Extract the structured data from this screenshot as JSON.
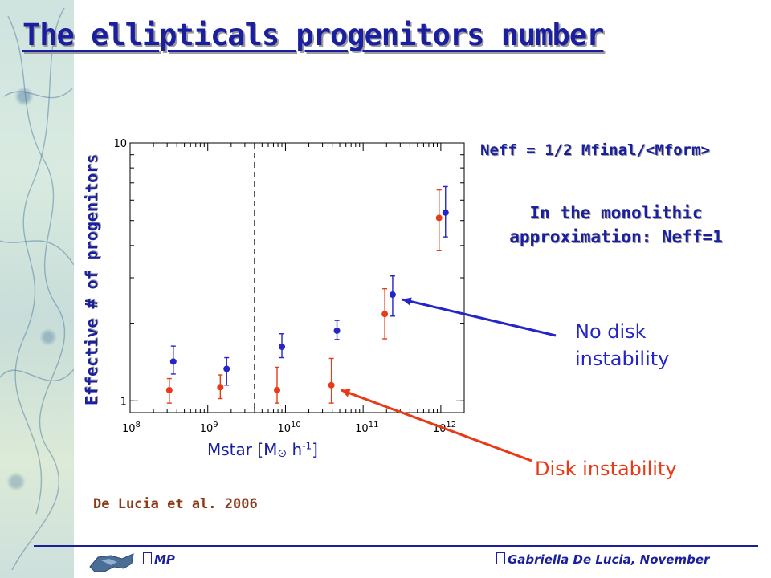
{
  "slide": {
    "title": "The ellipticals progenitors number",
    "formula": "Neff = 1/2 Mfinal/<Mform>",
    "note": "In the monolithic approximation: Neff=1",
    "label_no_disk": "No disk instability",
    "label_disk": "Disk instability",
    "citation": "De Lucia et al. 2006",
    "footer_left": "MP",
    "footer_right": "Gabriella De Lucia, November"
  },
  "colors": {
    "title": "#1a1fa0",
    "no_disk_series": "#2424c8",
    "disk_series": "#e83a16"
  },
  "chart_data": {
    "type": "scatter",
    "xlabel": "Mstar [M",
    "xlabel_sun": "⊙",
    "xlabel_tail": " h",
    "xlabel_sup": "-1",
    "xlabel_end": "]",
    "ylabel": "Effective # of progenitors",
    "x_scale": "log",
    "y_scale": "log",
    "xlim": [
      100000000,
      2000000000000
    ],
    "ylim": [
      0.9,
      10
    ],
    "x_ticks": [
      {
        "value": 100000000,
        "base": "10",
        "exp": "8"
      },
      {
        "value": 1000000000,
        "base": "10",
        "exp": "9"
      },
      {
        "value": 10000000000,
        "base": "10",
        "exp": "10"
      },
      {
        "value": 100000000000,
        "base": "10",
        "exp": "11"
      },
      {
        "value": 1000000000000,
        "base": "10",
        "exp": "12"
      }
    ],
    "y_ticks": [
      {
        "value": 1,
        "label": "1"
      },
      {
        "value": 10,
        "label": "10"
      }
    ],
    "vline_x": 4000000000,
    "series": [
      {
        "key": "disk",
        "color": "#e83a16",
        "points": [
          {
            "x": 320000000,
            "y": 1.1,
            "lo": 0.98,
            "hi": 1.22
          },
          {
            "x": 1450000000,
            "y": 1.13,
            "lo": 1.02,
            "hi": 1.26
          },
          {
            "x": 7800000000,
            "y": 1.1,
            "lo": 0.98,
            "hi": 1.35
          },
          {
            "x": 39000000000,
            "y": 1.15,
            "lo": 0.98,
            "hi": 1.46
          },
          {
            "x": 190000000000,
            "y": 2.17,
            "lo": 1.74,
            "hi": 2.72
          },
          {
            "x": 950000000000,
            "y": 5.12,
            "lo": 3.82,
            "hi": 6.57
          }
        ]
      },
      {
        "key": "no_disk",
        "color": "#2424c8",
        "points": [
          {
            "x": 360000000,
            "y": 1.42,
            "lo": 1.27,
            "hi": 1.63
          },
          {
            "x": 1750000000,
            "y": 1.33,
            "lo": 1.15,
            "hi": 1.47
          },
          {
            "x": 9000000000,
            "y": 1.62,
            "lo": 1.47,
            "hi": 1.82
          },
          {
            "x": 46000000000,
            "y": 1.87,
            "lo": 1.73,
            "hi": 2.05
          },
          {
            "x": 240000000000,
            "y": 2.58,
            "lo": 2.13,
            "hi": 3.05
          },
          {
            "x": 1150000000000,
            "y": 5.37,
            "lo": 4.32,
            "hi": 6.77
          }
        ]
      }
    ],
    "annotations": [
      {
        "series": "no_disk",
        "point_index": 4,
        "label_ref": "label_no_disk"
      },
      {
        "series": "disk",
        "point_index": 3,
        "label_ref": "label_disk"
      }
    ]
  }
}
